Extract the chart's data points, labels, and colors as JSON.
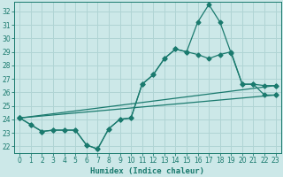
{
  "xlabel": "Humidex (Indice chaleur)",
  "bg_color": "#cce8e8",
  "line_color": "#1a7a6e",
  "grid_color": "#b0d4d4",
  "xlim": [
    -0.5,
    23.5
  ],
  "ylim": [
    21.5,
    32.7
  ],
  "yticks": [
    22,
    23,
    24,
    25,
    26,
    27,
    28,
    29,
    30,
    31,
    32
  ],
  "xticks": [
    0,
    1,
    2,
    3,
    4,
    5,
    6,
    7,
    8,
    9,
    10,
    11,
    12,
    13,
    14,
    15,
    16,
    17,
    18,
    19,
    20,
    21,
    22,
    23
  ],
  "line1_jagged": {
    "x": [
      0,
      1,
      2,
      3,
      4,
      5,
      6,
      7,
      8,
      9,
      10,
      11,
      12,
      13,
      14,
      15,
      16,
      17,
      18,
      19,
      20,
      21,
      22,
      23
    ],
    "y": [
      24.1,
      23.6,
      23.1,
      23.2,
      23.2,
      23.2,
      22.1,
      21.8,
      23.3,
      24.0,
      24.1,
      26.6,
      27.3,
      28.5,
      29.2,
      29.0,
      31.2,
      32.5,
      31.2,
      28.9,
      26.6,
      26.6,
      25.8,
      25.8
    ]
  },
  "line2_jagged": {
    "x": [
      0,
      1,
      2,
      3,
      4,
      5,
      6,
      7,
      8,
      9,
      10,
      11,
      12,
      13,
      14,
      15,
      16,
      17,
      18,
      19,
      20,
      21,
      22,
      23
    ],
    "y": [
      24.1,
      23.6,
      23.1,
      23.2,
      23.2,
      23.2,
      22.1,
      21.8,
      23.3,
      24.0,
      24.1,
      26.6,
      27.3,
      28.5,
      29.2,
      29.0,
      28.8,
      28.5,
      28.8,
      29.0,
      26.6,
      26.6,
      26.5,
      26.5
    ]
  },
  "line3_straight": {
    "x": [
      0,
      23
    ],
    "y": [
      24.1,
      25.8
    ]
  },
  "line4_straight": {
    "x": [
      0,
      23
    ],
    "y": [
      24.1,
      26.5
    ]
  }
}
